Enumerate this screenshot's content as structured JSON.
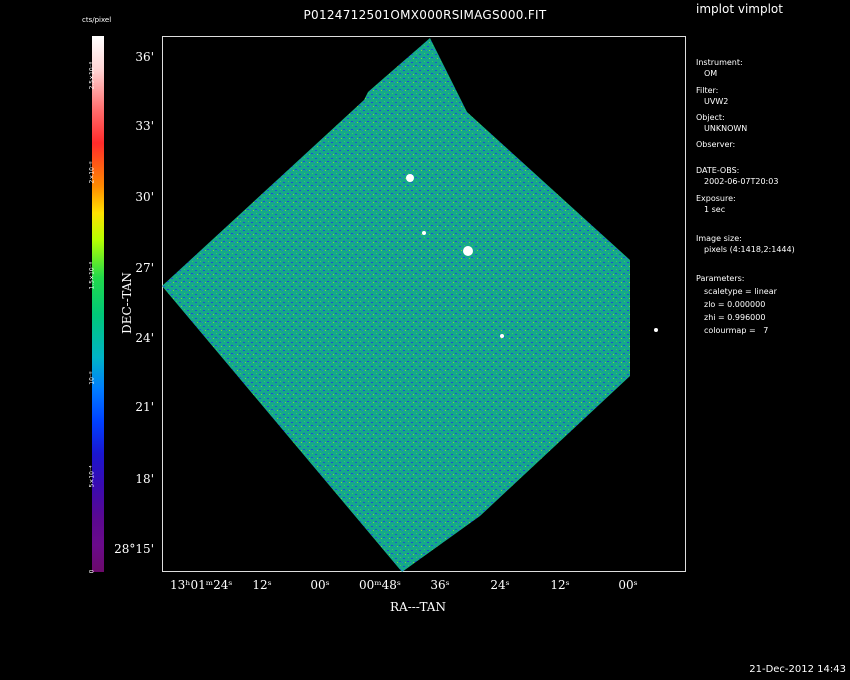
{
  "title": "P0124712501OMX000RSIMAGS000.FIT",
  "app_label": "implot vimplot",
  "timestamp": "21-Dec-2012 14:43",
  "colorbar": {
    "label": "cts/pixel",
    "ticks": [
      "2.5×10⁻⁸",
      "2×10⁻⁸",
      "1.5×10⁻⁸",
      "10⁻⁸",
      "5×10⁻⁴",
      "0"
    ]
  },
  "axes": {
    "x_title": "RA---TAN",
    "y_title": "DEC--TAN",
    "x_ticks": [
      "13ʰ01ᵐ24ˢ",
      "12ˢ",
      "00ˢ",
      "00ᵐ48ˢ",
      "36ˢ",
      "24ˢ",
      "12ˢ",
      "00ˢ"
    ],
    "y_ticks": [
      "36'",
      "33'",
      "30'",
      "27'",
      "24'",
      "21'",
      "18'",
      "28°15'"
    ]
  },
  "info": {
    "instrument_label": "Instrument:",
    "instrument": "OM",
    "filter_label": "Filter:",
    "filter": "UVW2",
    "object_label": "Object:",
    "object": "UNKNOWN",
    "observer_label": "Observer:",
    "date_label": "DATE-OBS:",
    "date": "2002-06-07T20:03",
    "exposure_label": "Exposure:",
    "exposure": "1 sec",
    "image_size_label": "Image size:",
    "image_size": "pixels (4:1418,2:1444)",
    "parameters_label": "Parameters:",
    "scaletype": "scaletype = linear",
    "zlo": "zlo = 0.000000",
    "zhi": "zhi = 0.996000",
    "colourmap": "colourmap =   7"
  },
  "colors": {
    "background": "#000000",
    "field": "#14b38c",
    "noise_blue": "#1d4fd6"
  }
}
